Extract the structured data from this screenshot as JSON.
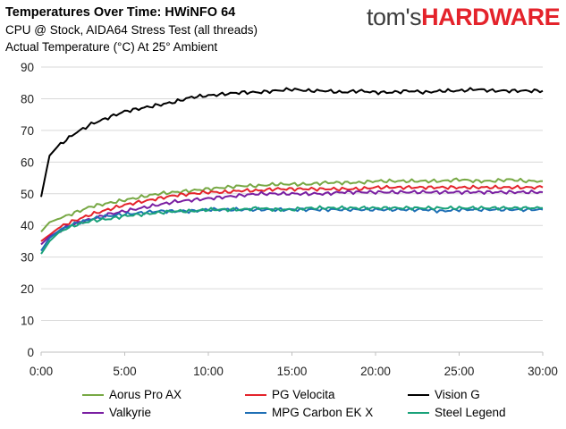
{
  "header": {
    "title": "Temperatures Over Time: HWiNFO 64",
    "subtitle": "CPU @ Stock, AIDA64 Stress Test (all threads)",
    "subtitle2": "Actual Temperature (°C) At 25° Ambient",
    "brand_part1": "tom's",
    "brand_part2": "HARDWARE"
  },
  "chart_data": {
    "type": "line",
    "title": "Temperatures Over Time: HWiNFO 64",
    "subtitle": "CPU @ Stock, AIDA64 Stress Test (all threads)",
    "ylabel": "Actual Temperature (°C) At 25° Ambient",
    "xlabel": "",
    "xlim": [
      0,
      30
    ],
    "ylim": [
      0,
      90
    ],
    "xticks": [
      "0:00",
      "5:00",
      "10:00",
      "15:00",
      "20:00",
      "25:00",
      "30:00"
    ],
    "yticks": [
      "0",
      "10",
      "20",
      "30",
      "40",
      "50",
      "60",
      "70",
      "80",
      "90"
    ],
    "grid": true,
    "legend_position": "bottom",
    "x_unit_minutes": [
      0,
      0.5,
      1,
      1.5,
      2,
      3,
      4,
      5,
      6,
      7,
      8,
      9,
      10,
      11,
      12,
      13,
      14,
      15,
      16,
      17,
      18,
      19,
      20,
      21,
      22,
      23,
      24,
      25,
      26,
      27,
      28,
      29,
      30
    ],
    "series": [
      {
        "name": "Aorus Pro AX",
        "color": "#77a844",
        "values": [
          38,
          41,
          42,
          43,
          44,
          46,
          47,
          48,
          49,
          50,
          50.5,
          51,
          51.5,
          52,
          52.5,
          52.5,
          53,
          53,
          53,
          53.5,
          53.5,
          53.5,
          54,
          54,
          54,
          54,
          54,
          54.5,
          54,
          54,
          54.5,
          54,
          54
        ]
      },
      {
        "name": "PG Velocita",
        "color": "#e4232b",
        "values": [
          35,
          37,
          39,
          40.5,
          41.5,
          43.5,
          45,
          46.5,
          47.5,
          48.5,
          49.5,
          50,
          50.5,
          50.5,
          51,
          51,
          51.5,
          51.5,
          51.5,
          51.5,
          51.5,
          51.5,
          52,
          52,
          52,
          52,
          52,
          52,
          52,
          52,
          52,
          52,
          52
        ]
      },
      {
        "name": "Vision G",
        "color": "#000000",
        "values": [
          49,
          62,
          65,
          67,
          69,
          72,
          74,
          76,
          77,
          78,
          79,
          80.5,
          81,
          81.5,
          82,
          82,
          82.5,
          83,
          82.5,
          82.5,
          82,
          82.5,
          82,
          82,
          82.5,
          82,
          82.5,
          82.5,
          83,
          82.5,
          82.5,
          82.5,
          82.5
        ]
      },
      {
        "name": "Valkyrie",
        "color": "#7a1fa2",
        "values": [
          34,
          36.5,
          38,
          39.5,
          40.5,
          42,
          43.5,
          44.5,
          45.5,
          46.5,
          47.5,
          48,
          48.5,
          49,
          49.5,
          50,
          50,
          50,
          50,
          50,
          50.5,
          50.5,
          50.5,
          50.5,
          50.5,
          50.5,
          50.5,
          50.5,
          50.5,
          50.5,
          50.5,
          50.5,
          50.5
        ]
      },
      {
        "name": "MPG Carbon EK X",
        "color": "#1f6fb5",
        "values": [
          32,
          36,
          38,
          39.5,
          40.5,
          42,
          43,
          43.5,
          44,
          44.5,
          44.5,
          44.5,
          45,
          45,
          45,
          45,
          45,
          45,
          45,
          45,
          45,
          45,
          45,
          45,
          45,
          45,
          44.5,
          45,
          45,
          45,
          45,
          45,
          45
        ]
      },
      {
        "name": "Steel Legend",
        "color": "#1aa27a",
        "values": [
          31,
          35,
          37.5,
          39,
          40,
          41.5,
          42,
          43,
          43.5,
          44,
          44.5,
          44.5,
          45,
          45,
          45,
          45.5,
          45,
          45,
          45.5,
          45.5,
          45.5,
          45.5,
          45.5,
          45.5,
          45.5,
          45.5,
          45.5,
          45.5,
          45.5,
          45.5,
          45.5,
          45.5,
          45.5
        ]
      }
    ]
  }
}
